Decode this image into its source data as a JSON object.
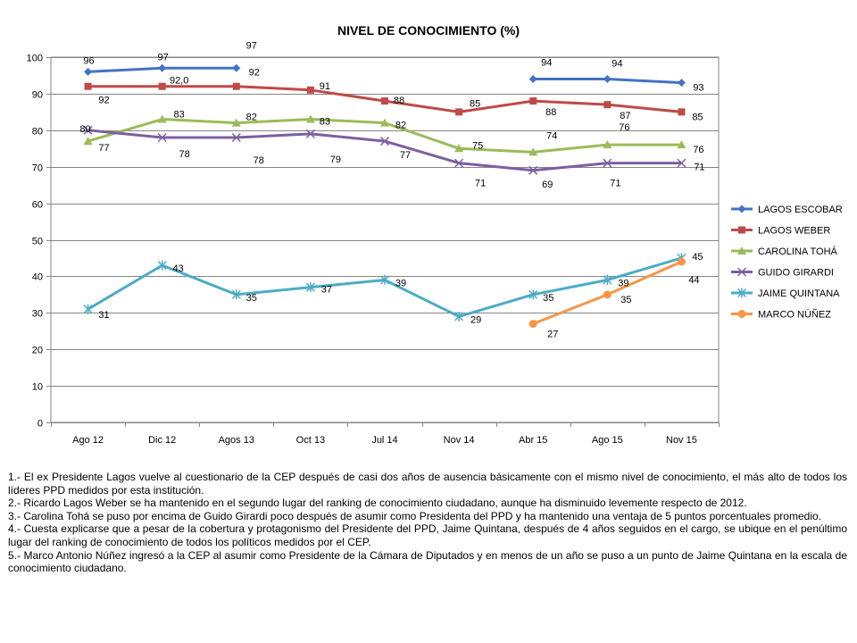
{
  "chart_data": {
    "type": "line",
    "title": "NIVEL DE CONOCIMIENTO (%)",
    "xlabel": "",
    "ylabel": "",
    "ylim": [
      0,
      100
    ],
    "yticks": [
      "0",
      "10",
      "20",
      "30",
      "40",
      "50",
      "60",
      "70",
      "80",
      "90",
      "100"
    ],
    "categories": [
      "Ago 12",
      "Dic 12",
      "Agos 13",
      "Oct 13",
      "Jul 14",
      "Nov 14",
      "Abr 15",
      "Ago 15",
      "Nov 15"
    ],
    "grid": true,
    "legend_position": "right",
    "series": [
      {
        "name": "LAGOS ESCOBAR",
        "color": "#4472C4",
        "marker": "diamond",
        "values": [
          96,
          97,
          97,
          null,
          null,
          null,
          94,
          94,
          93
        ],
        "labels": [
          "96",
          "97",
          "97",
          null,
          null,
          null,
          "94",
          "94",
          "93"
        ]
      },
      {
        "name": "LAGOS WEBER",
        "color": "#BE4B48",
        "marker": "square",
        "values": [
          92,
          92,
          92,
          91,
          88,
          85,
          88,
          87,
          85
        ],
        "labels": [
          "92",
          "92,0",
          "92",
          "91",
          "88",
          "85",
          "88",
          "87",
          "85"
        ]
      },
      {
        "name": "CAROLINA TOHÁ",
        "color": "#9BBB59",
        "marker": "triangle",
        "values": [
          77,
          83,
          82,
          83,
          82,
          75,
          74,
          76,
          76
        ],
        "labels": [
          "77",
          "83",
          "82",
          "83",
          "82",
          "75",
          "74",
          "76",
          "76"
        ]
      },
      {
        "name": "GUIDO GIRARDI",
        "color": "#7D5FA0",
        "marker": "x",
        "values": [
          80,
          78,
          78,
          79,
          77,
          71,
          69,
          71,
          71
        ],
        "labels": [
          "80",
          "78",
          "78",
          "79",
          "77",
          "71",
          "69",
          "71",
          "71"
        ]
      },
      {
        "name": "JAIME QUINTANA",
        "color": "#4BACC6",
        "marker": "star",
        "values": [
          31,
          43,
          35,
          37,
          39,
          29,
          35,
          39,
          45
        ],
        "labels": [
          "31",
          "43",
          "35",
          "37",
          "39",
          "29",
          "35",
          "39",
          "45"
        ]
      },
      {
        "name": "MARCO NÚÑEZ",
        "color": "#F79646",
        "marker": "circle",
        "values": [
          null,
          null,
          null,
          null,
          null,
          null,
          27,
          35,
          44
        ],
        "labels": [
          null,
          null,
          null,
          null,
          null,
          null,
          "27",
          "35",
          "44"
        ]
      }
    ]
  },
  "notes": [
    "1.- El ex Presidente Lagos vuelve al cuestionario de la CEP después de casi dos años de ausencia básicamente con el mismo nivel de conocimiento, el más alto de todos los líderes PPD medidos por esta institución.",
    "2.- Ricardo Lagos Weber se ha mantenido en el segundo lugar del ranking de conocimiento ciudadano, aunque ha disminuido levemente respecto de 2012.",
    "3.- Carolina Tohá se puso por encima de Guido Girardi poco después de asumir como Presidenta del PPD y ha mantenido una ventaja de 5 puntos porcentuales promedio.",
    "4.- Cuesta explicarse que a pesar de la cobertura y protagonismo del Presidente del PPD, Jaime Quintana, después de 4 años seguidos en el cargo, se ubique en el penúltimo lugar del ranking de conocimiento de todos los políticos medidos por el CEP.",
    "5.- Marco Antonio Núñez ingresó a la CEP al asumir como Presidente de la Cámara de Diputados y en menos de un año se puso a un punto de Jaime Quintana en la escala de conocimiento ciudadano."
  ]
}
